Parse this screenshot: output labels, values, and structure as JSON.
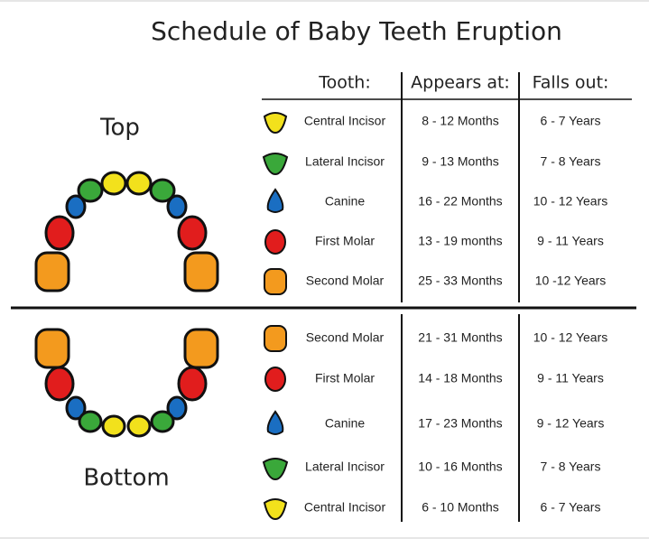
{
  "title": "Schedule of Baby Teeth Eruption",
  "labels": {
    "top": "Top",
    "bottom": "Bottom"
  },
  "table": {
    "headers": [
      "Tooth:",
      "Appears at:",
      "Falls out:"
    ],
    "top_rows": [
      [
        "Central Incisor",
        "8 - 12 Months",
        "6 - 7 Years"
      ],
      [
        "Lateral Incisor",
        "9 - 13 Months",
        "7 - 8 Years"
      ],
      [
        "Canine",
        "16 - 22 Months",
        "10 - 12 Years"
      ],
      [
        "First Molar",
        "13 - 19 months",
        "9 - 11 Years"
      ],
      [
        "Second Molar",
        "25 - 33 Months",
        "10 -12 Years"
      ]
    ],
    "bottom_rows": [
      [
        "Second Molar",
        "21 - 31 Months",
        "10 - 12 Years"
      ],
      [
        "First Molar",
        "14 - 18 Months",
        "9 - 11 Years"
      ],
      [
        "Canine",
        "17 - 23 Months",
        "9 - 12 Years"
      ],
      [
        "Lateral Incisor",
        "10 - 16 Months",
        "7 - 8 Years"
      ],
      [
        "Central Incisor",
        "6 - 10 Months",
        "6 - 7 Years"
      ]
    ]
  }
}
